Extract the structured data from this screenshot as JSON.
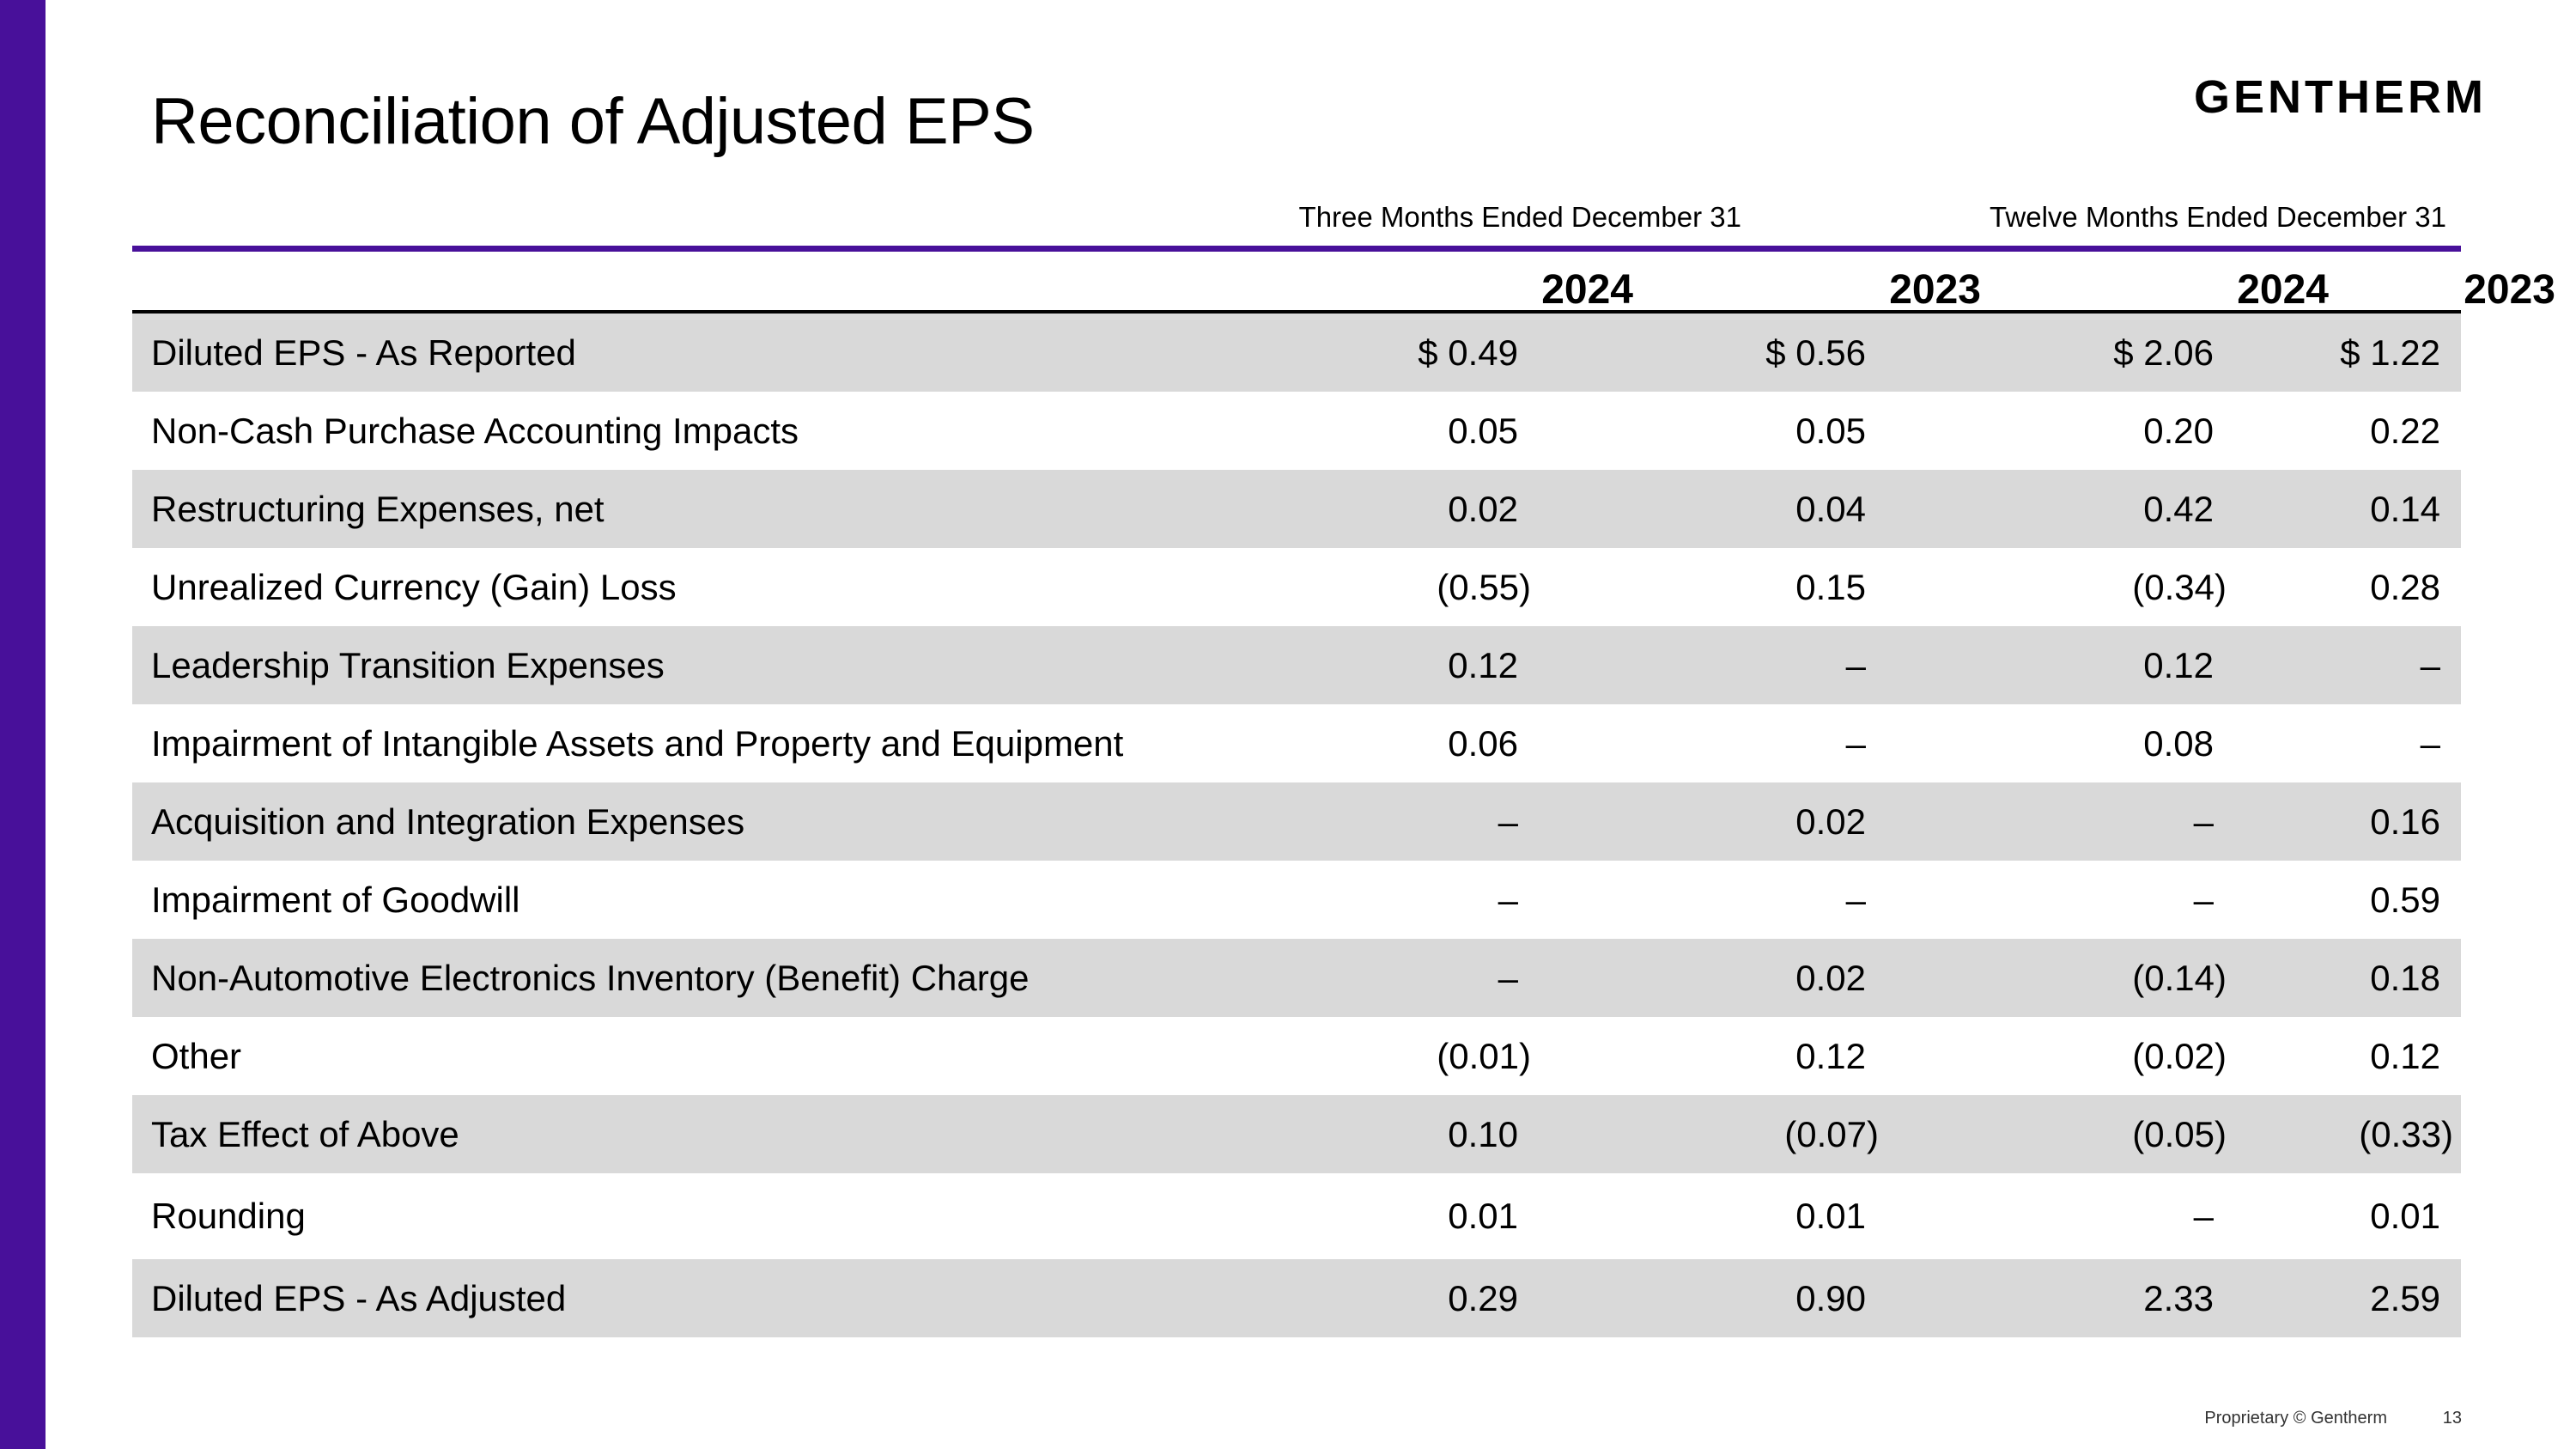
{
  "slide": {
    "title": "Reconciliation of Adjusted EPS",
    "logo_text": "GENTHERM",
    "accent_color": "#48109a",
    "shade_color": "#d9d9d9"
  },
  "table": {
    "period_headers": [
      "Three Months Ended December 31",
      "Twelve Months Ended December 31"
    ],
    "year_headers": [
      "2024",
      "2023",
      "2024",
      "2023"
    ],
    "rows": [
      {
        "label": "Diluted EPS - As Reported",
        "values": [
          "$ 0.49",
          "$ 0.56",
          "$ 2.06",
          "$ 1.22"
        ]
      },
      {
        "label": "Non-Cash Purchase Accounting Impacts",
        "values": [
          "0.05",
          "0.05",
          "0.20",
          "0.22"
        ]
      },
      {
        "label": "Restructuring Expenses, net",
        "values": [
          "0.02",
          "0.04",
          "0.42",
          "0.14"
        ]
      },
      {
        "label": "Unrealized Currency (Gain) Loss",
        "values": [
          "(0.55)",
          "0.15",
          "(0.34)",
          "0.28"
        ]
      },
      {
        "label": "Leadership Transition Expenses",
        "values": [
          "0.12",
          "–",
          "0.12",
          "–"
        ]
      },
      {
        "label": "Impairment of Intangible Assets and Property and Equipment",
        "values": [
          "0.06",
          "–",
          "0.08",
          "–"
        ]
      },
      {
        "label": "Acquisition and Integration Expenses",
        "values": [
          "–",
          "0.02",
          "–",
          "0.16"
        ]
      },
      {
        "label": "Impairment of Goodwill",
        "values": [
          "–",
          "–",
          "–",
          "0.59"
        ]
      },
      {
        "label": "Non-Automotive Electronics Inventory (Benefit) Charge",
        "values": [
          "–",
          "0.02",
          "(0.14)",
          "0.18"
        ]
      },
      {
        "label": "Other",
        "values": [
          "(0.01)",
          "0.12",
          "(0.02)",
          "0.12"
        ]
      },
      {
        "label": "Tax Effect of Above",
        "values": [
          "0.10",
          "(0.07)",
          "(0.05)",
          "(0.33)"
        ]
      },
      {
        "label": "Rounding",
        "values": [
          "0.01",
          "0.01",
          "–",
          "0.01"
        ]
      },
      {
        "label": "Diluted EPS - As Adjusted",
        "values": [
          "0.29",
          "0.90",
          "2.33",
          "2.59"
        ]
      }
    ]
  },
  "footer": {
    "copyright": "Proprietary © Gentherm",
    "page_number": "13"
  }
}
